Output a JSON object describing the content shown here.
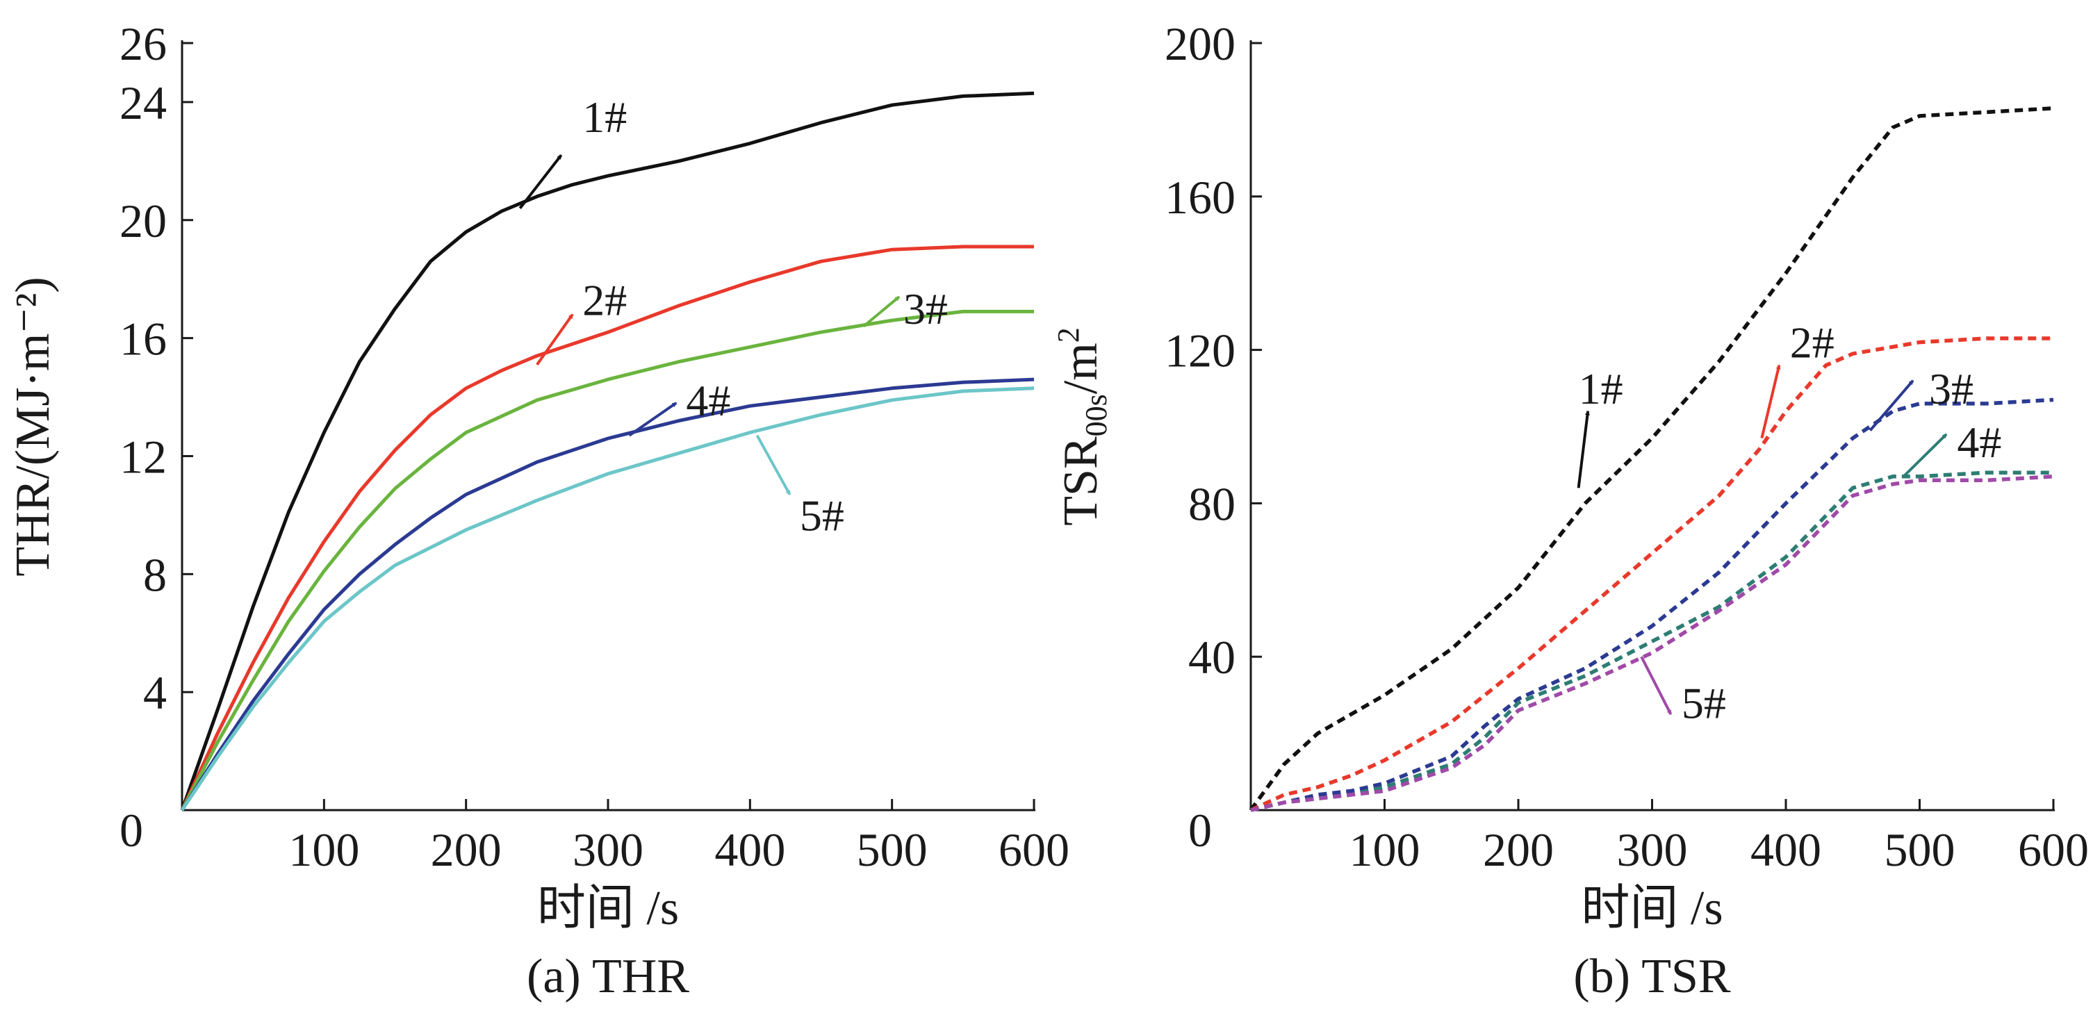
{
  "chart_data": [
    {
      "type": "line",
      "panel": "a",
      "caption": "(a) THR",
      "title": "",
      "xlabel": "时间 /s",
      "ylabel": "THR/(MJ·m⁻²)",
      "xlim": [
        0,
        600
      ],
      "ylim": [
        0,
        26
      ],
      "xticks": [
        100,
        200,
        300,
        400,
        500,
        600
      ],
      "yticks": [
        4,
        8,
        12,
        16,
        20,
        24,
        26
      ],
      "origin_label": "0",
      "grid": false,
      "line_style": "solid",
      "series": [
        {
          "name": "1#",
          "color": "#111111",
          "x": [
            0,
            25,
            50,
            75,
            100,
            125,
            150,
            175,
            200,
            225,
            250,
            275,
            300,
            350,
            400,
            450,
            500,
            550,
            600
          ],
          "y": [
            0,
            3.4,
            6.9,
            10.1,
            12.8,
            15.2,
            17.0,
            18.6,
            19.6,
            20.3,
            20.8,
            21.2,
            21.5,
            22.0,
            22.6,
            23.3,
            23.9,
            24.2,
            24.3
          ],
          "label_xy": [
            282,
            23.5
          ],
          "arrow_from": [
            238,
            20.4
          ],
          "arrow_to": [
            267,
            22.2
          ]
        },
        {
          "name": "2#",
          "color": "#e8392b",
          "x": [
            0,
            25,
            50,
            75,
            100,
            125,
            150,
            175,
            200,
            225,
            250,
            300,
            350,
            400,
            450,
            500,
            550,
            600
          ],
          "y": [
            0,
            2.6,
            5.0,
            7.2,
            9.1,
            10.8,
            12.2,
            13.4,
            14.3,
            14.9,
            15.4,
            16.2,
            17.1,
            17.9,
            18.6,
            19.0,
            19.1,
            19.1
          ],
          "label_xy": [
            282,
            17.3
          ],
          "arrow_from": [
            250,
            15.1
          ],
          "arrow_to": [
            275,
            16.8
          ]
        },
        {
          "name": "3#",
          "color": "#6ab43e",
          "x": [
            0,
            25,
            50,
            75,
            100,
            125,
            150,
            175,
            200,
            250,
            300,
            350,
            400,
            450,
            500,
            550,
            600
          ],
          "y": [
            0,
            2.3,
            4.4,
            6.4,
            8.1,
            9.6,
            10.9,
            11.9,
            12.8,
            13.9,
            14.6,
            15.2,
            15.7,
            16.2,
            16.6,
            16.9,
            16.9
          ],
          "label_xy": [
            508,
            17.0
          ],
          "arrow_from": [
            480,
            16.4
          ],
          "arrow_to": [
            505,
            17.4
          ]
        },
        {
          "name": "4#",
          "color": "#2b3a92",
          "x": [
            0,
            25,
            50,
            75,
            100,
            125,
            150,
            175,
            200,
            250,
            300,
            350,
            400,
            450,
            500,
            550,
            600
          ],
          "y": [
            0,
            1.9,
            3.7,
            5.3,
            6.8,
            8.0,
            9.0,
            9.9,
            10.7,
            11.8,
            12.6,
            13.2,
            13.7,
            14.0,
            14.3,
            14.5,
            14.6
          ],
          "label_xy": [
            355,
            13.9
          ],
          "arrow_from": [
            315,
            12.7
          ],
          "arrow_to": [
            348,
            13.8
          ]
        },
        {
          "name": "5#",
          "color": "#6cc6c8",
          "x": [
            0,
            25,
            50,
            75,
            100,
            125,
            150,
            175,
            200,
            250,
            300,
            350,
            400,
            450,
            500,
            550,
            600
          ],
          "y": [
            0,
            1.8,
            3.5,
            5.0,
            6.4,
            7.4,
            8.3,
            8.9,
            9.5,
            10.5,
            11.4,
            12.1,
            12.8,
            13.4,
            13.9,
            14.2,
            14.3
          ],
          "label_xy": [
            435,
            10.0
          ],
          "arrow_from": [
            405,
            12.7
          ],
          "arrow_to": [
            428,
            10.7
          ]
        }
      ]
    },
    {
      "type": "line",
      "panel": "b",
      "caption": "(b) TSR",
      "title": "",
      "xlabel": "时间 /s",
      "ylabel": "TSR00s/m2",
      "ylabel_parts": {
        "main": "TSR",
        "sub": "00s",
        "unit": "/m",
        "sup": "2"
      },
      "xlim": [
        0,
        600
      ],
      "ylim": [
        0,
        200
      ],
      "xticks": [
        100,
        200,
        300,
        400,
        500,
        600
      ],
      "yticks": [
        40,
        80,
        120,
        160,
        200
      ],
      "origin_label": "0",
      "grid": false,
      "line_style": "dashed",
      "series": [
        {
          "name": "1#",
          "color": "#111111",
          "x": [
            0,
            25,
            50,
            75,
            100,
            150,
            200,
            250,
            300,
            350,
            400,
            450,
            480,
            500,
            550,
            600
          ],
          "y": [
            0,
            12,
            20,
            25,
            30,
            42,
            58,
            80,
            97,
            117,
            140,
            165,
            178,
            181,
            182,
            183
          ],
          "label_xy": [
            245,
            110
          ],
          "arrow_from": [
            245,
            84
          ],
          "arrow_to": [
            252,
            104
          ]
        },
        {
          "name": "2#",
          "color": "#e8392b",
          "x": [
            0,
            25,
            50,
            75,
            100,
            150,
            200,
            250,
            300,
            350,
            380,
            400,
            430,
            450,
            500,
            550,
            600
          ],
          "y": [
            0,
            4,
            6,
            9,
            13,
            23,
            37,
            52,
            67,
            82,
            94,
            104,
            116,
            119,
            122,
            123,
            123
          ],
          "label_xy": [
            403,
            122
          ],
          "arrow_from": [
            382,
            97
          ],
          "arrow_to": [
            395,
            116
          ]
        },
        {
          "name": "3#",
          "color": "#2b3a92",
          "x": [
            0,
            25,
            50,
            75,
            100,
            150,
            175,
            200,
            250,
            300,
            350,
            400,
            450,
            480,
            500,
            550,
            600
          ],
          "y": [
            0,
            2,
            4,
            5,
            7,
            14,
            22,
            29,
            37,
            48,
            62,
            80,
            97,
            104,
            106,
            106,
            107
          ],
          "label_xy": [
            507,
            110
          ],
          "arrow_from": [
            463,
            99
          ],
          "arrow_to": [
            495,
            112
          ]
        },
        {
          "name": "4#",
          "color": "#2e7d73",
          "x": [
            0,
            25,
            50,
            75,
            100,
            150,
            175,
            200,
            250,
            300,
            350,
            400,
            450,
            480,
            500,
            550,
            600
          ],
          "y": [
            0,
            2,
            3,
            4,
            6,
            12,
            19,
            28,
            35,
            44,
            53,
            66,
            84,
            87,
            87,
            88,
            88
          ],
          "label_xy": [
            528,
            96
          ],
          "arrow_from": [
            488,
            87
          ],
          "arrow_to": [
            520,
            98
          ]
        },
        {
          "name": "5#",
          "color": "#a04aa8",
          "x": [
            0,
            25,
            50,
            75,
            100,
            150,
            175,
            200,
            250,
            300,
            350,
            400,
            450,
            480,
            500,
            550,
            600
          ],
          "y": [
            0,
            2,
            3,
            4,
            5,
            11,
            17,
            26,
            33,
            41,
            52,
            64,
            82,
            85,
            86,
            86,
            87
          ],
          "label_xy": [
            322,
            28
          ],
          "arrow_from": [
            292,
            40
          ],
          "arrow_to": [
            314,
            25
          ]
        }
      ]
    }
  ]
}
